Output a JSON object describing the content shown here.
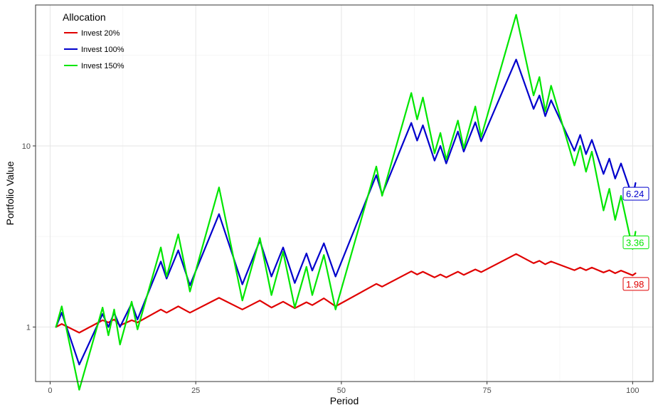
{
  "chart_data": {
    "type": "line",
    "xlabel": "Period",
    "ylabel": "Portfolio Value",
    "xlim": [
      -2.5,
      103.5
    ],
    "ylim": [
      0.5,
      60
    ],
    "y_scale": "log",
    "grid": true,
    "legend_placement": "top-left",
    "legend_title": "Allocation",
    "x_ticks": [
      0,
      25,
      50,
      75,
      100
    ],
    "x_tick_labels": [
      "0",
      "25",
      "50",
      "75",
      "100"
    ],
    "y_ticks": [
      1,
      10
    ],
    "y_tick_labels": [
      "1",
      "10"
    ],
    "series": [
      {
        "name": "Invest 20%",
        "color": "#e00000",
        "end_label": "1.98",
        "points": [
          [
            1,
            1.0
          ],
          [
            2,
            1.04
          ],
          [
            5,
            0.93
          ],
          [
            9,
            1.09
          ],
          [
            10,
            1.06
          ],
          [
            11,
            1.1
          ],
          [
            12,
            1.02
          ],
          [
            14,
            1.09
          ],
          [
            15,
            1.06
          ],
          [
            19,
            1.25
          ],
          [
            20,
            1.2
          ],
          [
            22,
            1.3
          ],
          [
            24,
            1.2
          ],
          [
            29,
            1.45
          ],
          [
            33,
            1.25
          ],
          [
            36,
            1.4
          ],
          [
            38,
            1.28
          ],
          [
            40,
            1.38
          ],
          [
            42,
            1.27
          ],
          [
            44,
            1.37
          ],
          [
            45,
            1.32
          ],
          [
            47,
            1.44
          ],
          [
            49,
            1.3
          ],
          [
            56,
            1.73
          ],
          [
            57,
            1.67
          ],
          [
            62,
            2.03
          ],
          [
            63,
            1.95
          ],
          [
            64,
            2.02
          ],
          [
            66,
            1.88
          ],
          [
            67,
            1.95
          ],
          [
            68,
            1.88
          ],
          [
            70,
            2.02
          ],
          [
            71,
            1.94
          ],
          [
            73,
            2.08
          ],
          [
            74,
            2.01
          ],
          [
            80,
            2.53
          ],
          [
            83,
            2.25
          ],
          [
            84,
            2.32
          ],
          [
            85,
            2.22
          ],
          [
            86,
            2.3
          ],
          [
            90,
            2.06
          ],
          [
            91,
            2.13
          ],
          [
            92,
            2.06
          ],
          [
            93,
            2.13
          ],
          [
            95,
            2.0
          ],
          [
            96,
            2.06
          ],
          [
            97,
            1.98
          ],
          [
            98,
            2.05
          ],
          [
            100,
            1.93
          ],
          [
            100.5,
            1.98
          ]
        ]
      },
      {
        "name": "Invest 100%",
        "color": "#0000cc",
        "end_label": "6.24",
        "points": [
          [
            1,
            1.0
          ],
          [
            2,
            1.2
          ],
          [
            5,
            0.62
          ],
          [
            9,
            1.18
          ],
          [
            10,
            1.0
          ],
          [
            11,
            1.2
          ],
          [
            12,
            1.0
          ],
          [
            14,
            1.35
          ],
          [
            15,
            1.1
          ],
          [
            19,
            2.3
          ],
          [
            20,
            1.85
          ],
          [
            22,
            2.65
          ],
          [
            24,
            1.7
          ],
          [
            29,
            4.2
          ],
          [
            33,
            1.72
          ],
          [
            36,
            3.0
          ],
          [
            38,
            1.9
          ],
          [
            40,
            2.75
          ],
          [
            42,
            1.75
          ],
          [
            44,
            2.55
          ],
          [
            45,
            2.05
          ],
          [
            47,
            2.9
          ],
          [
            49,
            1.9
          ],
          [
            56,
            6.9
          ],
          [
            57,
            5.4
          ],
          [
            62,
            13.4
          ],
          [
            63,
            10.7
          ],
          [
            64,
            13.0
          ],
          [
            66,
            8.3
          ],
          [
            67,
            10.0
          ],
          [
            68,
            8.0
          ],
          [
            70,
            12.0
          ],
          [
            71,
            9.3
          ],
          [
            73,
            13.5
          ],
          [
            74,
            10.6
          ],
          [
            80,
            30.0
          ],
          [
            83,
            16.0
          ],
          [
            84,
            19.0
          ],
          [
            85,
            14.6
          ],
          [
            86,
            17.9
          ],
          [
            90,
            9.4
          ],
          [
            91,
            11.5
          ],
          [
            92,
            9.0
          ],
          [
            93,
            10.8
          ],
          [
            95,
            7.0
          ],
          [
            96,
            8.5
          ],
          [
            97,
            6.6
          ],
          [
            98,
            8.0
          ],
          [
            100,
            5.2
          ],
          [
            100.5,
            6.24
          ]
        ]
      },
      {
        "name": "Invest 150%",
        "color": "#00e600",
        "end_label": "3.36",
        "points": [
          [
            1,
            1.0
          ],
          [
            2,
            1.3
          ],
          [
            5,
            0.45
          ],
          [
            9,
            1.28
          ],
          [
            10,
            0.9
          ],
          [
            11,
            1.25
          ],
          [
            12,
            0.8
          ],
          [
            14,
            1.38
          ],
          [
            15,
            0.97
          ],
          [
            19,
            2.75
          ],
          [
            20,
            1.9
          ],
          [
            22,
            3.25
          ],
          [
            24,
            1.57
          ],
          [
            29,
            5.9
          ],
          [
            33,
            1.4
          ],
          [
            36,
            3.1
          ],
          [
            38,
            1.5
          ],
          [
            40,
            2.6
          ],
          [
            42,
            1.28
          ],
          [
            44,
            2.15
          ],
          [
            45,
            1.5
          ],
          [
            47,
            2.5
          ],
          [
            49,
            1.25
          ],
          [
            56,
            7.7
          ],
          [
            57,
            5.3
          ],
          [
            62,
            19.6
          ],
          [
            63,
            14.0
          ],
          [
            64,
            18.5
          ],
          [
            66,
            9.1
          ],
          [
            67,
            11.8
          ],
          [
            68,
            8.4
          ],
          [
            70,
            13.8
          ],
          [
            71,
            9.7
          ],
          [
            73,
            16.5
          ],
          [
            74,
            11.2
          ],
          [
            80,
            53.0
          ],
          [
            83,
            19.0
          ],
          [
            84,
            24.0
          ],
          [
            85,
            15.5
          ],
          [
            86,
            21.5
          ],
          [
            90,
            7.8
          ],
          [
            91,
            10.0
          ],
          [
            92,
            7.2
          ],
          [
            93,
            9.3
          ],
          [
            95,
            4.4
          ],
          [
            96,
            5.8
          ],
          [
            97,
            3.9
          ],
          [
            98,
            5.3
          ],
          [
            100,
            2.7
          ],
          [
            100.5,
            3.36
          ]
        ]
      }
    ]
  }
}
